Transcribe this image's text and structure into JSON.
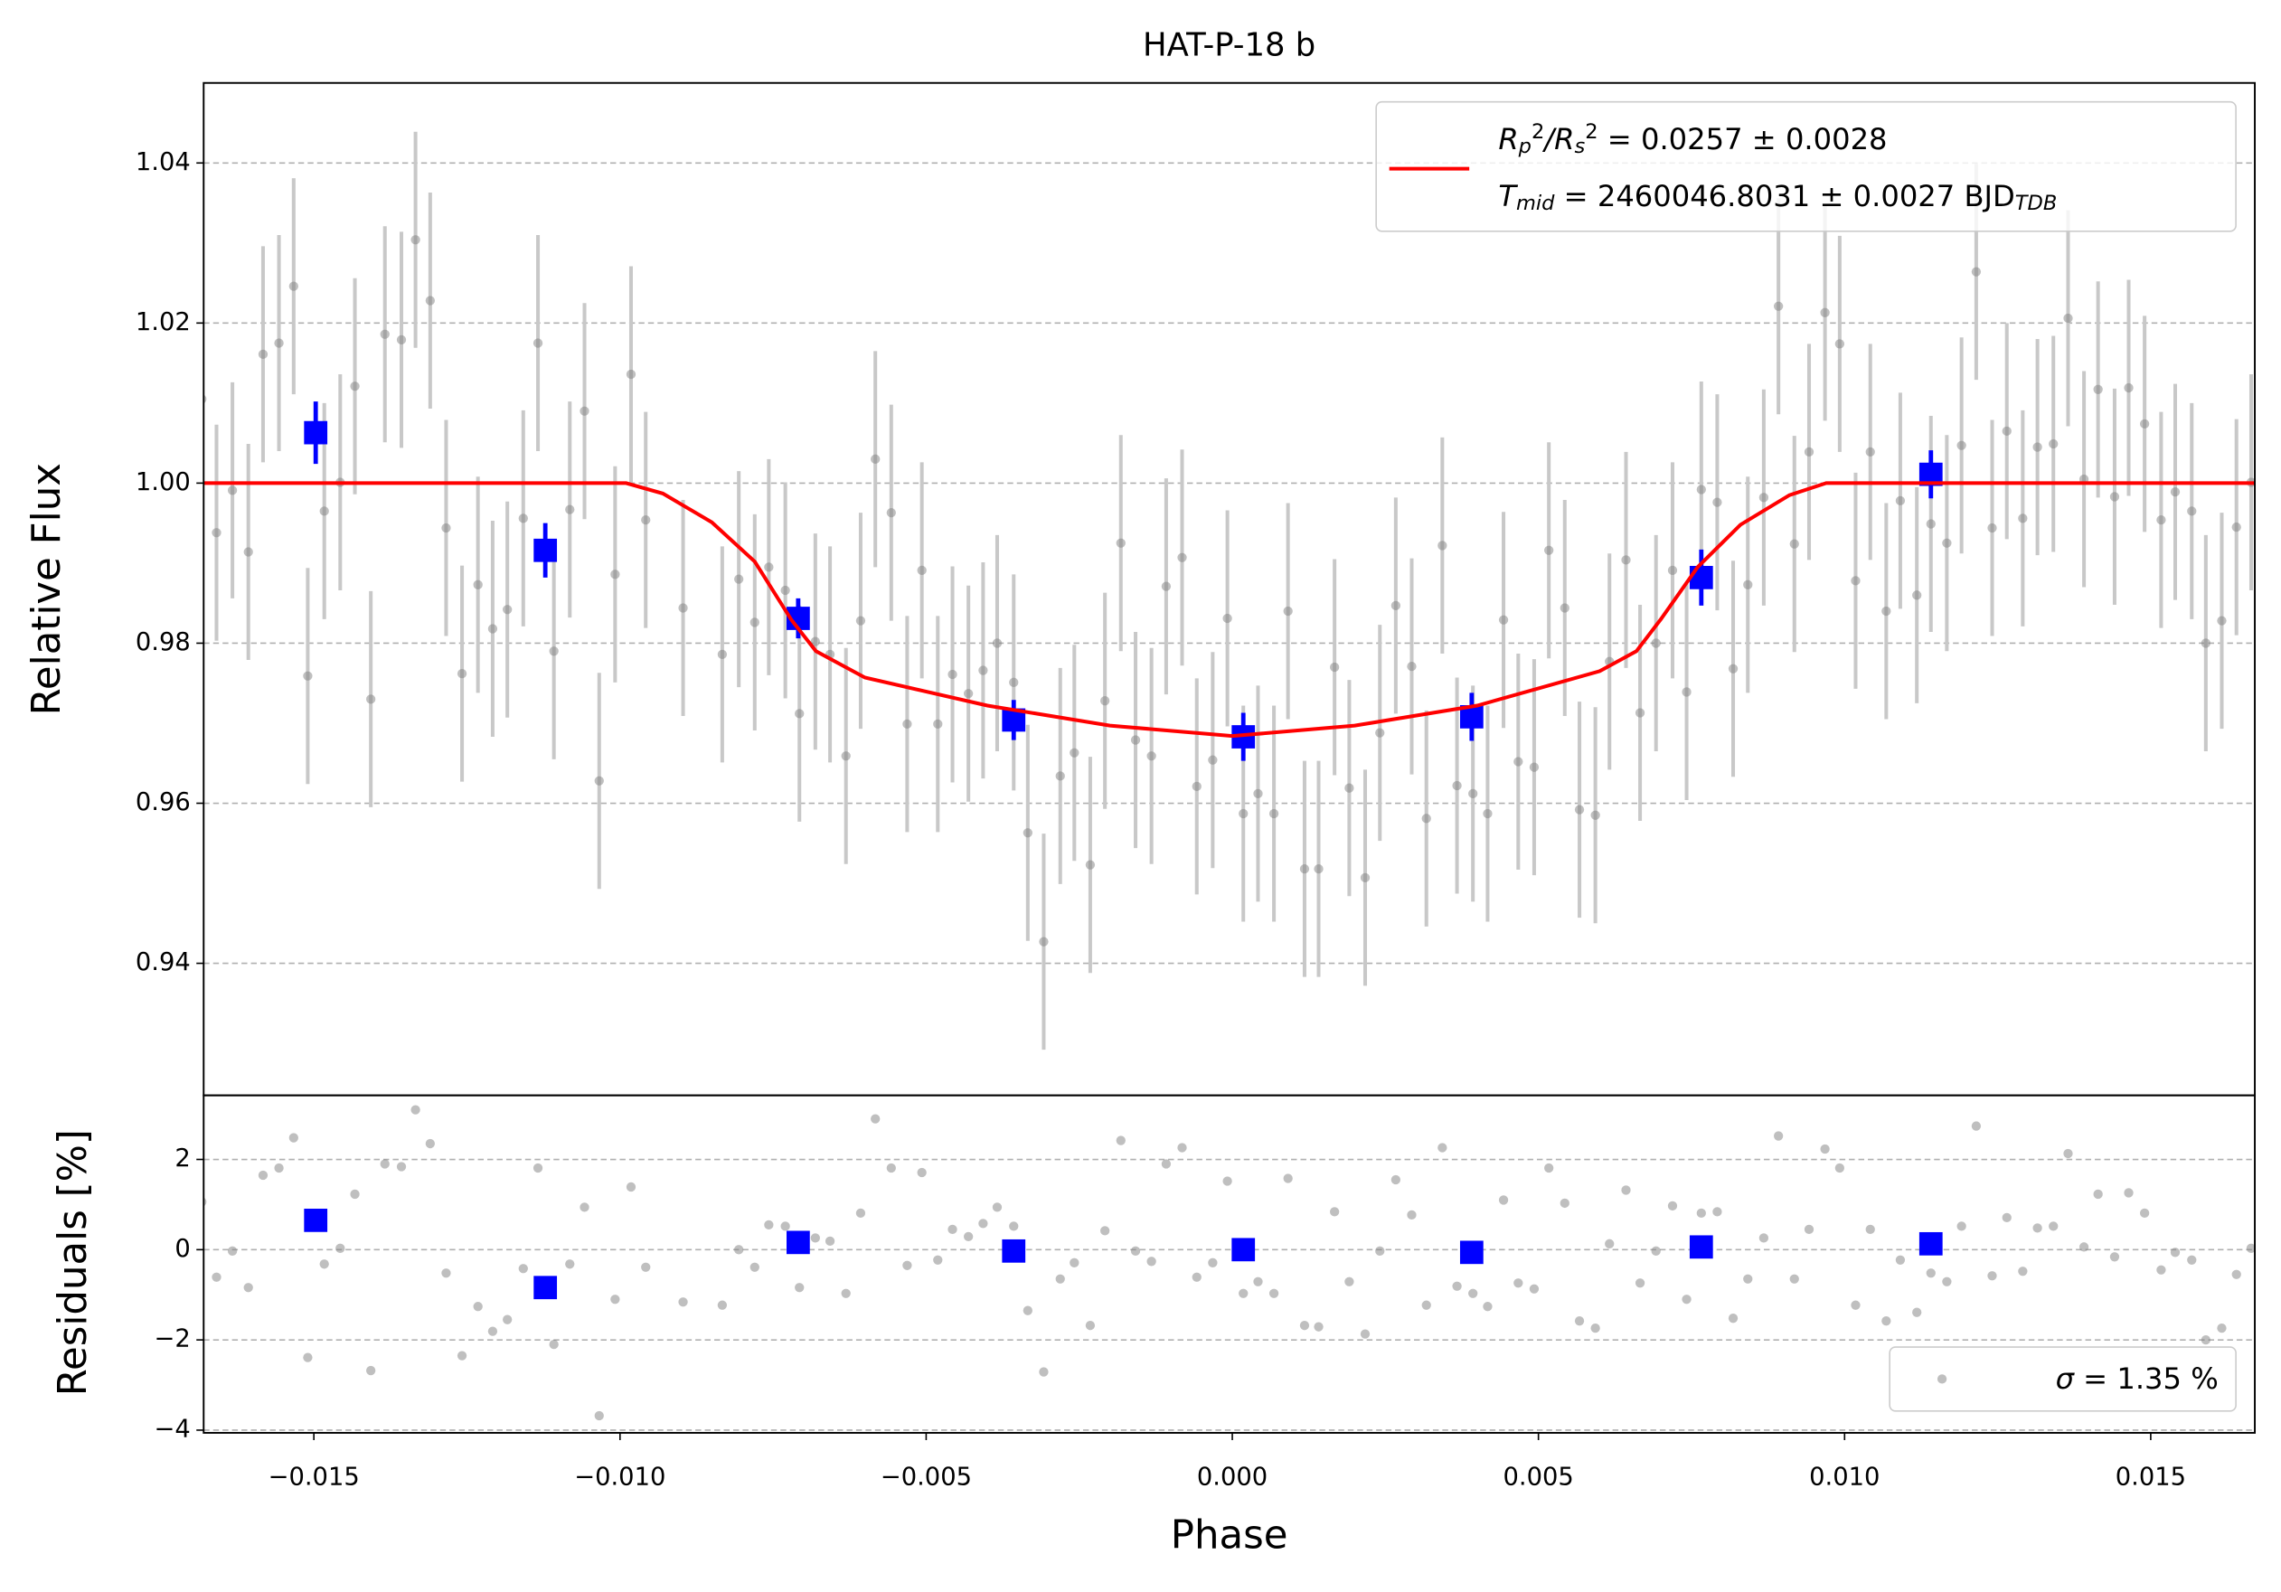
{
  "chart_data": [
    {
      "type": "errorbar",
      "title": "HAT-P-18 b",
      "ylabel": "Relative Flux",
      "xlim": [
        -0.0168,
        0.0167
      ],
      "ylim": [
        0.9235,
        1.05
      ],
      "yticks": [
        0.94,
        0.96,
        0.98,
        {
          "value": 1,
          "label": "1.00"
        },
        1.02,
        1.04
      ],
      "grid": true,
      "legend": "upper right",
      "series": [
        {
          "kind": "points",
          "color": "#808080",
          "yerr": 0.0135,
          "x": [
            -0.01683,
            -0.01659,
            -0.01633,
            -0.01607,
            -0.01583,
            -0.01557,
            -0.01533,
            -0.0151,
            -0.01483,
            -0.01457,
            -0.01433,
            -0.01407,
            -0.01384,
            -0.01357,
            -0.01334,
            -0.0131,
            -0.01284,
            -0.01258,
            -0.01232,
            -0.01208,
            -0.01184,
            -0.01158,
            -0.01134,
            -0.01108,
            -0.01082,
            -0.01058,
            -0.01034,
            -0.01008,
            -0.00982,
            -0.00958,
            -0.00897,
            -0.00833,
            -0.00806,
            -0.0078,
            -0.00757,
            -0.0073,
            -0.00707,
            -0.00681,
            -0.00657,
            -0.00631,
            -0.00607,
            -0.00583,
            -0.00557,
            -0.00531,
            -0.00507,
            -0.00481,
            -0.00457,
            -0.00431,
            -0.00407,
            -0.00384,
            -0.00357,
            -0.00334,
            -0.00308,
            -0.00281,
            -0.00258,
            -0.00232,
            -0.00208,
            -0.00182,
            -0.00158,
            -0.00132,
            -0.00108,
            -0.00082,
            -0.00058,
            -0.00032,
            -8e-05,
            0.00018,
            0.00042,
            0.00068,
            0.00091,
            0.00118,
            0.00141,
            0.00167,
            0.00191,
            0.00217,
            0.00241,
            0.00267,
            0.00293,
            0.00317,
            0.00343,
            0.00367,
            0.00393,
            0.00417,
            0.00443,
            0.00467,
            0.00493,
            0.00517,
            0.00543,
            0.00567,
            0.00593,
            0.00616,
            0.00643,
            0.00666,
            0.00692,
            0.00719,
            0.00742,
            0.00766,
            0.00792,
            0.00818,
            0.00842,
            0.00868,
            0.00892,
            0.00918,
            0.00942,
            0.00968,
            0.00992,
            0.01018,
            0.01042,
            0.01068,
            0.01091,
            0.01118,
            0.01141,
            0.01167,
            0.01191,
            0.01215,
            0.01241,
            0.01265,
            0.01291,
            0.01315,
            0.01341,
            0.01365,
            0.01391,
            0.01414,
            0.01441,
            0.01464,
            0.0149,
            0.01517,
            0.0154,
            0.01567,
            0.0159,
            0.01616,
            0.0164,
            0.01664
          ],
          "values": [
            1.0105,
            0.9938,
            0.9991,
            0.9914,
            1.0161,
            1.0175,
            1.0246,
            0.9759,
            0.9965,
            1.0001,
            1.0121,
            0.973,
            1.0186,
            1.0179,
            1.0304,
            1.0228,
            0.9944,
            0.9762,
            0.9873,
            0.9818,
            0.9842,
            0.9956,
            1.0175,
            0.979,
            0.9967,
            1.009,
            0.9628,
            0.9886,
            1.0136,
            0.9954,
            0.9844,
            0.9786,
            0.988,
            0.9826,
            0.9895,
            0.9866,
            0.9712,
            0.9802,
            0.9786,
            0.9659,
            0.9828,
            1.003,
            0.9963,
            0.9699,
            0.9891,
            0.9699,
            0.9761,
            0.9737,
            0.9766,
            0.98,
            0.9751,
            0.9563,
            0.9427,
            0.9634,
            0.9663,
            0.9523,
            0.9728,
            0.9925,
            0.9679,
            0.9659,
            0.9871,
            0.9907,
            0.9621,
            0.9654,
            0.9831,
            0.9587,
            0.9612,
            0.9587,
            0.984,
            0.9518,
            0.9518,
            0.977,
            0.9619,
            0.9507,
            0.9688,
            0.9847,
            0.9771,
            0.9581,
            0.9922,
            0.9622,
            0.9612,
            0.9587,
            0.9829,
            0.9652,
            0.9645,
            0.9916,
            0.9844,
            0.9592,
            0.9585,
            0.9777,
            0.9904,
            0.9713,
            0.98,
            0.9891,
            0.9739,
            0.9992,
            0.9976,
            0.9768,
            0.9873,
            0.9982,
            1.0221,
            0.9924,
            1.0039,
            1.0213,
            1.0174,
            0.9878,
            1.0039,
            0.984,
            0.9978,
            0.986,
            0.9949,
            0.9925,
            1.0047,
            1.0264,
            0.9944,
            1.0065,
            0.9956,
            1.0045,
            1.0049,
            1.0206,
            1.0005,
            1.0117,
            0.9983,
            1.0119,
            1.0074,
            0.9954,
            0.9989,
            0.9965,
            0.98,
            0.9828,
            0.9945,
            1.0001
          ]
        },
        {
          "kind": "squares",
          "color": "#0000ff",
          "x": [
            -0.01497,
            -0.01122,
            -0.00709,
            -0.00357,
            0.00018,
            0.00391,
            0.00766,
            0.01141
          ],
          "values": [
            1.0063,
            0.9916,
            0.9831,
            0.9704,
            0.9683,
            0.9708,
            0.9882,
            1.0011
          ],
          "yerr": [
            0.0039,
            0.0034,
            0.0025,
            0.0025,
            0.003,
            0.003,
            0.0035,
            0.003
          ]
        },
        {
          "kind": "line",
          "color": "#ff0000",
          "name": [
            {
              "text": "R",
              "style": "italic"
            },
            {
              "text": "p",
              "style": "sub italic"
            },
            {
              "text": "2",
              "style": "sup"
            },
            {
              "text": "/",
              "style": "italic"
            },
            {
              "text": "R",
              "style": "italic"
            },
            {
              "text": "s",
              "style": "sub italic"
            },
            {
              "text": "2",
              "style": "sup"
            },
            {
              "text": " = 0.0257 ± 0.0028",
              "style": "plain"
            }
          ],
          "name2": [
            {
              "text": "T",
              "style": "italic"
            },
            {
              "text": "mid",
              "style": "sub italic"
            },
            {
              "text": " = 2460046.8031 ± 0.0027 BJD",
              "style": "plain"
            },
            {
              "text": "TDB",
              "style": "sub italic"
            }
          ],
          "x": [
            -0.0168,
            -0.0099,
            -0.0093,
            -0.0085,
            -0.0078,
            -0.0072,
            -0.0068,
            -0.006,
            -0.004,
            -0.002,
            0,
            0.002,
            0.004,
            0.006,
            0.0066,
            0.007,
            0.0076,
            0.0083,
            0.0091,
            0.0097,
            0.0167
          ],
          "values": [
            1,
            1,
            0.9987,
            0.9951,
            0.9902,
            0.9829,
            0.979,
            0.9757,
            0.9722,
            0.9697,
            0.9684,
            0.9697,
            0.9722,
            0.9765,
            0.979,
            0.983,
            0.9895,
            0.9948,
            0.9985,
            1,
            1
          ]
        }
      ]
    },
    {
      "type": "scatter",
      "xlabel": "Phase",
      "ylabel": "Residuals [%]",
      "xlim": [
        -0.0168,
        0.0167
      ],
      "ylim": [
        -4.06,
        3.42
      ],
      "xticks": [
        {
          "value": -0.015,
          "label": "−0.015"
        },
        {
          "value": -0.01,
          "label": "−0.010"
        },
        {
          "value": -0.005,
          "label": "−0.005"
        },
        {
          "value": 0,
          "label": "0.000"
        },
        {
          "value": 0.005,
          "label": "0.005"
        },
        {
          "value": 0.01,
          "label": "0.010"
        },
        {
          "value": 0.015,
          "label": "0.015"
        }
      ],
      "yticks": [
        {
          "value": -4,
          "label": "−4"
        },
        {
          "value": -2,
          "label": "−2"
        },
        0,
        2
      ],
      "grid": true,
      "legend": "lower right",
      "series": [
        {
          "kind": "points",
          "color": "#808080",
          "name": [
            {
              "text": "σ",
              "style": "italic"
            },
            {
              "text": " = 1.35 %",
              "style": "plain"
            }
          ],
          "x": [
            -0.01683,
            -0.01659,
            -0.01633,
            -0.01607,
            -0.01583,
            -0.01557,
            -0.01533,
            -0.0151,
            -0.01483,
            -0.01457,
            -0.01433,
            -0.01407,
            -0.01384,
            -0.01357,
            -0.01334,
            -0.0131,
            -0.01284,
            -0.01258,
            -0.01232,
            -0.01208,
            -0.01184,
            -0.01158,
            -0.01134,
            -0.01108,
            -0.01082,
            -0.01058,
            -0.01034,
            -0.01008,
            -0.00982,
            -0.00958,
            -0.00897,
            -0.00833,
            -0.00806,
            -0.0078,
            -0.00757,
            -0.0073,
            -0.00707,
            -0.00681,
            -0.00657,
            -0.00631,
            -0.00607,
            -0.00583,
            -0.00557,
            -0.00531,
            -0.00507,
            -0.00481,
            -0.00457,
            -0.00431,
            -0.00407,
            -0.00384,
            -0.00357,
            -0.00334,
            -0.00308,
            -0.00281,
            -0.00258,
            -0.00232,
            -0.00208,
            -0.00182,
            -0.00158,
            -0.00132,
            -0.00108,
            -0.00082,
            -0.00058,
            -0.00032,
            -8e-05,
            0.00018,
            0.00042,
            0.00068,
            0.00091,
            0.00118,
            0.00141,
            0.00167,
            0.00191,
            0.00217,
            0.00241,
            0.00267,
            0.00293,
            0.00317,
            0.00343,
            0.00367,
            0.00393,
            0.00417,
            0.00443,
            0.00467,
            0.00493,
            0.00517,
            0.00543,
            0.00567,
            0.00593,
            0.00616,
            0.00643,
            0.00666,
            0.00692,
            0.00719,
            0.00742,
            0.00766,
            0.00792,
            0.00818,
            0.00842,
            0.00868,
            0.00892,
            0.00918,
            0.00942,
            0.00968,
            0.00992,
            0.01018,
            0.01042,
            0.01068,
            0.01091,
            0.01118,
            0.01141,
            0.01167,
            0.01191,
            0.01215,
            0.01241,
            0.01265,
            0.01291,
            0.01315,
            0.01341,
            0.01365,
            0.01391,
            0.01414,
            0.01441,
            0.01464,
            0.0149,
            0.01517,
            0.0154,
            0.01567,
            0.0159,
            0.01616,
            0.0164,
            0.01664
          ],
          "values": [
            1.06,
            -0.61,
            -0.03,
            -0.84,
            1.65,
            1.81,
            2.48,
            -2.39,
            -0.32,
            0.03,
            1.23,
            -2.68,
            1.9,
            1.84,
            3.1,
            2.35,
            -0.52,
            -2.35,
            -1.26,
            -1.81,
            -1.55,
            -0.42,
            1.81,
            -2.1,
            -0.32,
            0.94,
            -3.68,
            -1.1,
            1.39,
            -0.39,
            -1.16,
            -1.23,
            0,
            -0.39,
            0.55,
            0.52,
            -0.84,
            0.26,
            0.19,
            -0.97,
            0.81,
            2.9,
            1.81,
            -0.35,
            1.71,
            -0.23,
            0.45,
            0.29,
            0.58,
            0.94,
            0.52,
            -1.35,
            -2.71,
            -0.65,
            -0.29,
            -1.68,
            0.42,
            2.42,
            -0.03,
            -0.26,
            1.9,
            2.26,
            -0.61,
            -0.29,
            1.52,
            -0.97,
            -0.71,
            -0.97,
            1.58,
            -1.68,
            -1.71,
            0.84,
            -0.71,
            -1.87,
            -0.03,
            1.55,
            0.77,
            -1.23,
            2.26,
            -0.81,
            -0.97,
            -1.26,
            1.1,
            -0.74,
            -0.87,
            1.81,
            1.03,
            -1.58,
            -1.74,
            0.13,
            1.32,
            -0.74,
            -0.03,
            0.97,
            -1.1,
            0.81,
            0.84,
            -1.52,
            -0.65,
            0.26,
            2.52,
            -0.65,
            0.45,
            2.23,
            1.81,
            -1.23,
            0.45,
            -1.58,
            -0.23,
            -1.39,
            -0.52,
            -0.71,
            0.52,
            2.74,
            -0.58,
            0.71,
            -0.48,
            0.48,
            0.52,
            2.13,
            0.06,
            1.23,
            -0.16,
            1.26,
            0.81,
            -0.45,
            -0.06,
            -0.23,
            -2,
            -1.74,
            -0.55,
            0.03
          ]
        },
        {
          "kind": "squares",
          "color": "#0000ff",
          "x": [
            -0.01497,
            -0.01122,
            -0.00709,
            -0.00357,
            0.00018,
            0.00391,
            0.00766,
            0.01141
          ],
          "values": [
            0.65,
            -0.84,
            0.16,
            -0.03,
            0,
            -0.06,
            0.06,
            0.13
          ]
        }
      ]
    }
  ]
}
